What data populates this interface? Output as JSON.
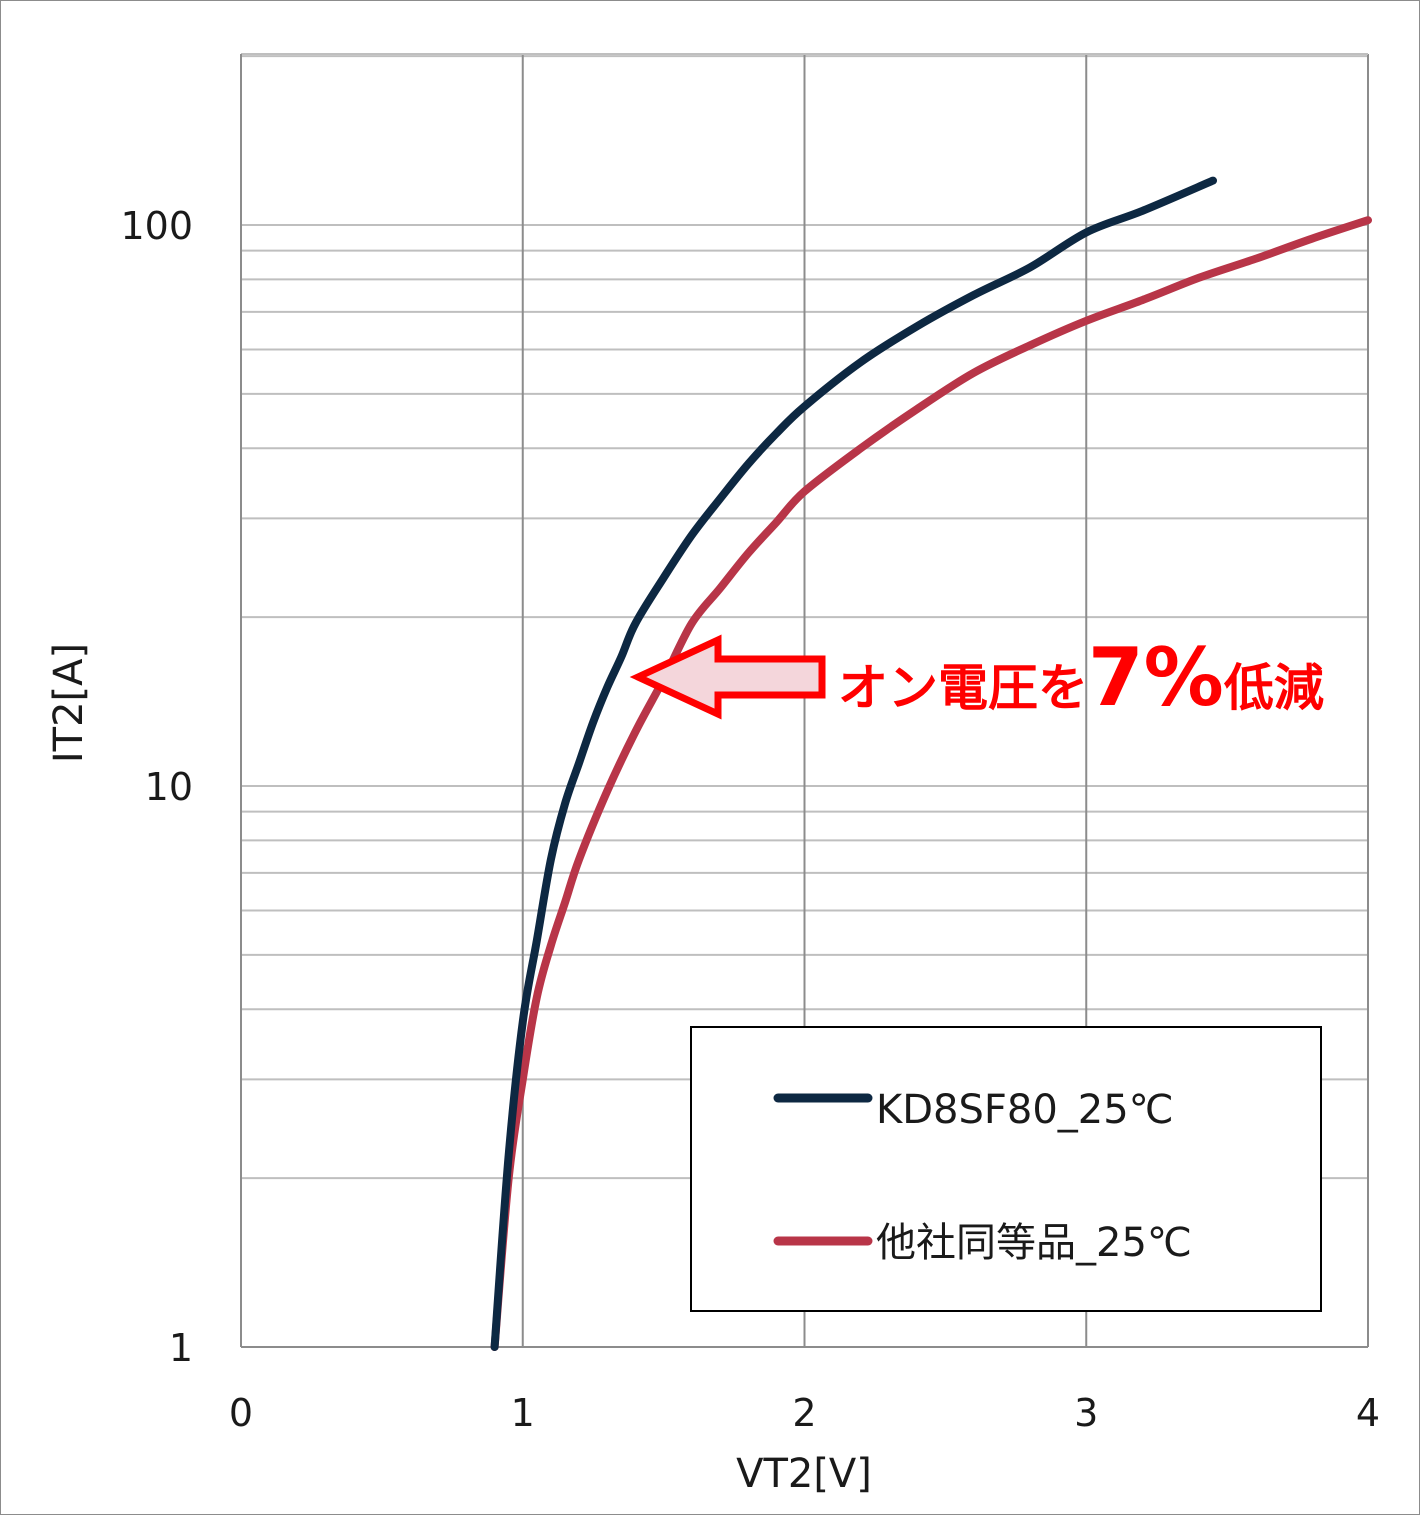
{
  "chart_data": {
    "type": "line",
    "xlabel": "VT2[V]",
    "ylabel": "IT2[A]",
    "xlim": [
      0,
      4
    ],
    "ylim": [
      1,
      200
    ],
    "y_scale": "log",
    "grid": true,
    "x_ticks": [
      "0",
      "1",
      "2",
      "3",
      "4"
    ],
    "y_ticks": [
      {
        "value": 1,
        "label": "1"
      },
      {
        "value": 10,
        "label": "10"
      },
      {
        "value": 100,
        "label": "100"
      }
    ],
    "legend_position": "bottom-right",
    "series": [
      {
        "name": "KD8SF80_25℃",
        "color": "#0d2842",
        "points": [
          [
            0.9,
            1.0
          ],
          [
            0.95,
            2.2
          ],
          [
            1.0,
            3.8
          ],
          [
            1.05,
            5.3
          ],
          [
            1.1,
            7.4
          ],
          [
            1.15,
            9.3
          ],
          [
            1.2,
            11.0
          ],
          [
            1.25,
            13.0
          ],
          [
            1.3,
            15.0
          ],
          [
            1.35,
            17.0
          ],
          [
            1.4,
            19.5
          ],
          [
            1.5,
            23.5
          ],
          [
            1.6,
            28.0
          ],
          [
            1.7,
            32.5
          ],
          [
            1.8,
            37.5
          ],
          [
            1.9,
            42.5
          ],
          [
            2.0,
            47.5
          ],
          [
            2.2,
            57.0
          ],
          [
            2.4,
            66.0
          ],
          [
            2.6,
            75.0
          ],
          [
            2.8,
            84.0
          ],
          [
            3.0,
            97.0
          ],
          [
            3.2,
            106.0
          ],
          [
            3.45,
            120.0
          ]
        ]
      },
      {
        "name": "他社同等品_25℃",
        "color": "#b83548",
        "points": [
          [
            0.9,
            1.0
          ],
          [
            0.95,
            2.0
          ],
          [
            1.0,
            3.0
          ],
          [
            1.05,
            4.2
          ],
          [
            1.1,
            5.2
          ],
          [
            1.15,
            6.2
          ],
          [
            1.2,
            7.4
          ],
          [
            1.3,
            9.8
          ],
          [
            1.4,
            12.5
          ],
          [
            1.5,
            15.5
          ],
          [
            1.6,
            19.5
          ],
          [
            1.7,
            22.5
          ],
          [
            1.8,
            26.0
          ],
          [
            1.9,
            29.5
          ],
          [
            2.0,
            33.5
          ],
          [
            2.2,
            40.0
          ],
          [
            2.4,
            47.0
          ],
          [
            2.6,
            54.5
          ],
          [
            2.8,
            61.0
          ],
          [
            3.0,
            67.5
          ],
          [
            3.2,
            73.5
          ],
          [
            3.4,
            80.5
          ],
          [
            3.6,
            87.0
          ],
          [
            3.8,
            94.5
          ],
          [
            4.0,
            102.0
          ]
        ]
      }
    ],
    "annotation": {
      "prefix": "オン電圧を",
      "value": "7%",
      "suffix": "低減",
      "color": "#ff0000"
    }
  }
}
